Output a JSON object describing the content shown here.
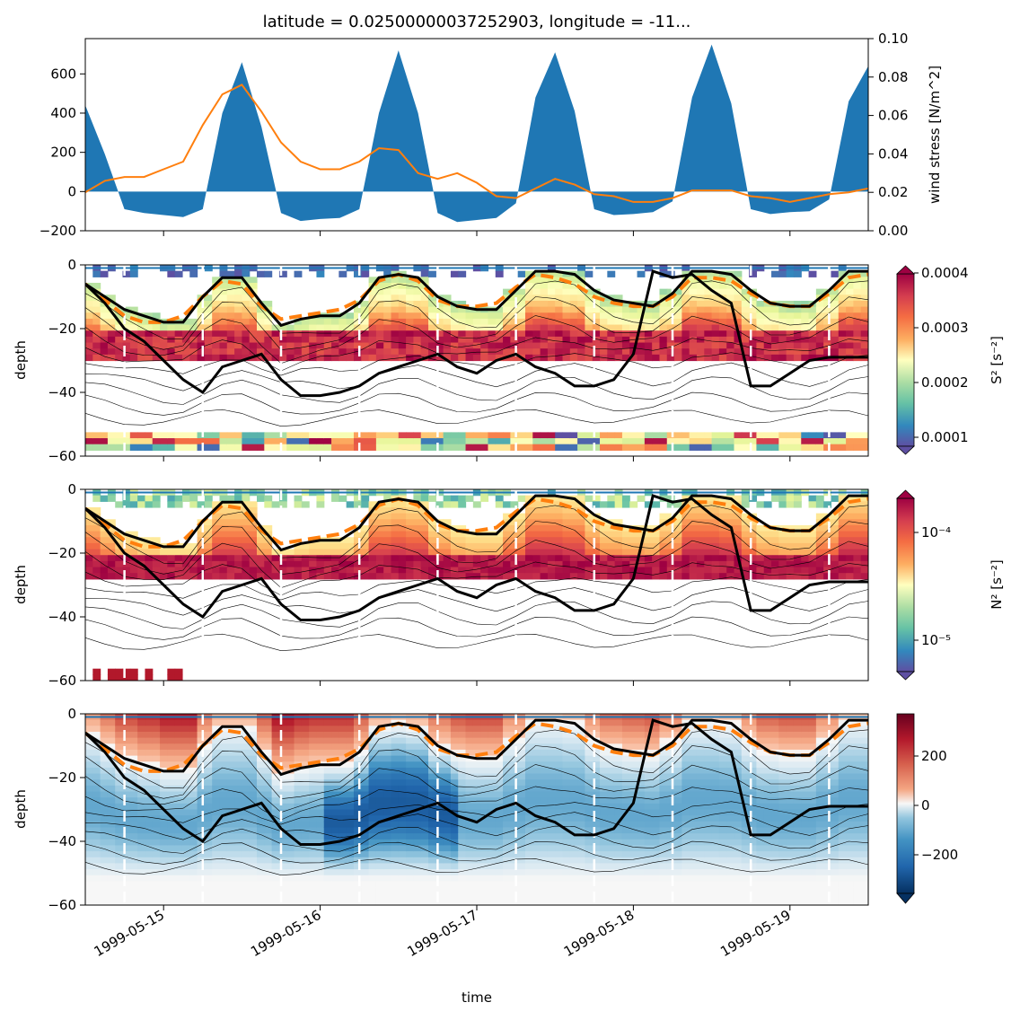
{
  "title": "latitude = 0.02500000037252903, longitude = -11...",
  "xlabel": "time",
  "date_tick_labels": [
    "1999-05-15",
    "1999-05-16",
    "1999-05-17",
    "1999-05-18",
    "1999-05-19"
  ],
  "colors": {
    "flux_fill": "#1f77b4",
    "wind_line": "#ff7f0e",
    "thick_contour": "#000000",
    "dashed_line": "#ff7f0e",
    "top_line": "#1f77b4",
    "day_marker": "#ffffff"
  },
  "panel1": {
    "left_ylabel": "",
    "right_ylabel": "wind stress [N/m^2]",
    "left_ticks": [
      "600",
      "400",
      "200",
      "0",
      "−200"
    ],
    "right_ticks": [
      "0.10",
      "0.08",
      "0.06",
      "0.04",
      "0.02",
      "0.00"
    ]
  },
  "panel2": {
    "ylabel": "depth",
    "yticks": [
      "0",
      "−20",
      "−40",
      "−60"
    ],
    "colorbar_label": "S² [s⁻²]",
    "colorbar_ticks": [
      "0.0004",
      "0.0003",
      "0.0002",
      "0.0001"
    ],
    "colormap": "Spectral_r"
  },
  "panel3": {
    "ylabel": "depth",
    "yticks": [
      "0",
      "−20",
      "−40",
      "−60"
    ],
    "colorbar_label": "N² [s⁻²]",
    "colorbar_ticks": [
      "10⁻⁴",
      "10⁻⁵"
    ],
    "colormap": "Spectral_r (log)"
  },
  "panel4": {
    "ylabel": "depth",
    "yticks": [
      "0",
      "−20",
      "−40",
      "−60"
    ],
    "colorbar_label": "",
    "colorbar_ticks": [
      "200",
      "0",
      "−200"
    ],
    "colormap": "RdBu_r"
  },
  "chart_data": [
    {
      "type": "area",
      "title": "latitude = 0.02500000037252903, longitude = -11...",
      "x_start": "1999-05-14 12:00",
      "x_step_hours": 3,
      "ylim": [
        -200,
        780
      ],
      "series": [
        {
          "values": [
            440,
            190,
            -90,
            -110,
            -120,
            -130,
            -90,
            400,
            660,
            330,
            -110,
            -150,
            -140,
            -135,
            -90,
            400,
            720,
            400,
            -110,
            -155,
            -145,
            -135,
            -60,
            480,
            710,
            410,
            -90,
            -120,
            -115,
            -105,
            -50,
            480,
            750,
            450,
            -90,
            -115,
            -105,
            -100,
            -40,
            460,
            640
          ]
        }
      ]
    },
    {
      "type": "line",
      "ylabel": "wind stress [N/m^2]",
      "x_start": "1999-05-14 12:00",
      "x_step_hours": 3,
      "ylim": [
        0,
        0.1
      ],
      "series": [
        {
          "values": [
            0.02,
            0.026,
            0.028,
            0.028,
            0.032,
            0.036,
            0.055,
            0.071,
            0.076,
            0.062,
            0.046,
            0.036,
            0.032,
            0.032,
            0.036,
            0.043,
            0.042,
            0.03,
            0.027,
            0.03,
            0.025,
            0.018,
            0.017,
            0.022,
            0.027,
            0.024,
            0.019,
            0.018,
            0.015,
            0.015,
            0.017,
            0.021,
            0.021,
            0.021,
            0.018,
            0.017,
            0.015,
            0.017,
            0.019,
            0.02,
            0.022
          ]
        }
      ]
    },
    {
      "type": "heatmap",
      "ylabel": "depth",
      "ylim": [
        -60,
        0
      ],
      "colorbar_range": [
        8e-05,
        0.0004
      ],
      "mixed_layer_depth": [
        -6,
        -10,
        -14,
        -16,
        -18,
        -18,
        -10,
        -4,
        -4,
        -12,
        -19,
        -17,
        -16,
        -16,
        -12,
        -4,
        -3,
        -4,
        -10,
        -13,
        -14,
        -14,
        -8,
        -2,
        -2,
        -3,
        -8,
        -11,
        -12,
        -13,
        -9,
        -2,
        -2,
        -3,
        -8,
        -12,
        -13,
        -13,
        -8,
        -2,
        -2
      ],
      "deep_boundary_depth": [
        -6,
        -12,
        -20,
        -24,
        -30,
        -36,
        -40,
        -32,
        -30,
        -28,
        -36,
        -41,
        -41,
        -40,
        -38,
        -34,
        -32,
        -30,
        -28,
        -32,
        -34,
        -30,
        -28,
        -32,
        -34,
        -38,
        -38,
        -36,
        -28,
        -2,
        -4,
        -3,
        -8,
        -12,
        -38,
        -38,
        -34,
        -30,
        -29,
        -29,
        -29
      ],
      "dashed_depth": [
        -6,
        -11,
        -16,
        -18,
        -18,
        -16,
        -10,
        -5,
        -6,
        -13,
        -17,
        -16,
        -15,
        -14,
        -11,
        -5,
        -3,
        -5,
        -11,
        -13,
        -13,
        -12,
        -7,
        -3,
        -4,
        -6,
        -10,
        -12,
        -13,
        -13,
        -10,
        -4,
        -4,
        -5,
        -9,
        -12,
        -13,
        -13,
        -9,
        -4,
        -3
      ],
      "day_markers": [
        "1999-05-14 18:00",
        "1999-05-15 06:00",
        "1999-05-15 18:00",
        "1999-05-16 06:00",
        "1999-05-16 18:00",
        "1999-05-17 06:00",
        "1999-05-17 18:00",
        "1999-05-18 06:00",
        "1999-05-18 18:00",
        "1999-05-19 06:00"
      ]
    },
    {
      "type": "heatmap",
      "ylabel": "depth",
      "ylim": [
        -60,
        0
      ],
      "colorbar_range": [
        5e-06,
        0.0002
      ],
      "colorbar_scale": "log"
    },
    {
      "type": "heatmap",
      "ylabel": "depth",
      "ylim": [
        -60,
        0
      ],
      "colorbar_range": [
        -350,
        350
      ]
    }
  ]
}
